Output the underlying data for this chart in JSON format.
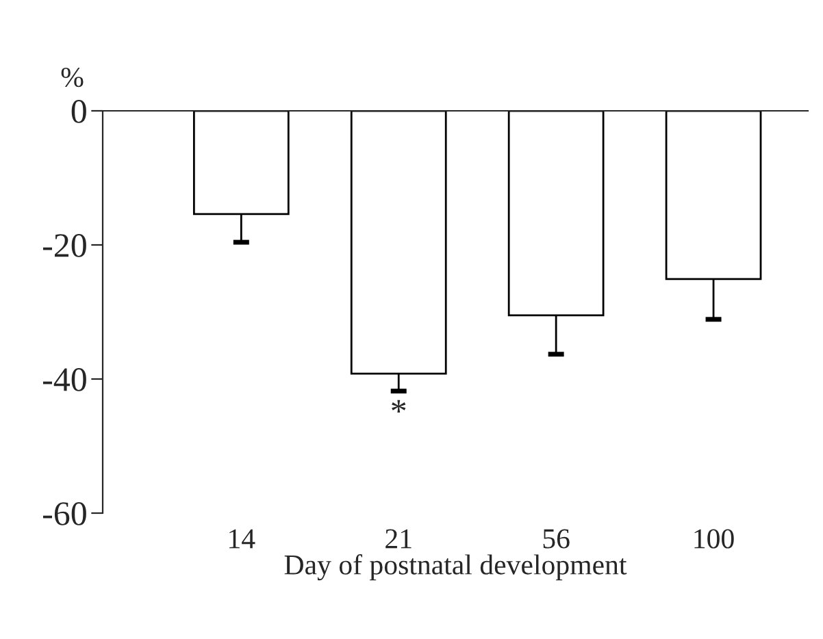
{
  "chart_data": {
    "type": "bar",
    "xlabel": "Day of postnatal development",
    "ylabel": "%",
    "categories": [
      "14",
      "21",
      "56",
      "100"
    ],
    "values": [
      -15.4,
      -39.2,
      -30.5,
      -25.1
    ],
    "errors": [
      [
        -19.6,
        -15.4
      ],
      [
        -41.8,
        -39.2
      ],
      [
        -36.3,
        -30.5
      ],
      [
        -31.1,
        -25.1
      ]
    ],
    "color": "#ffffff",
    "ylim": [
      -60,
      0
    ],
    "yticks": [
      -60,
      -40,
      -20,
      0
    ],
    "annotations": [
      {
        "text": "*",
        "x": "21",
        "y": -41.8
      }
    ],
    "grid": false,
    "legend": false
  }
}
